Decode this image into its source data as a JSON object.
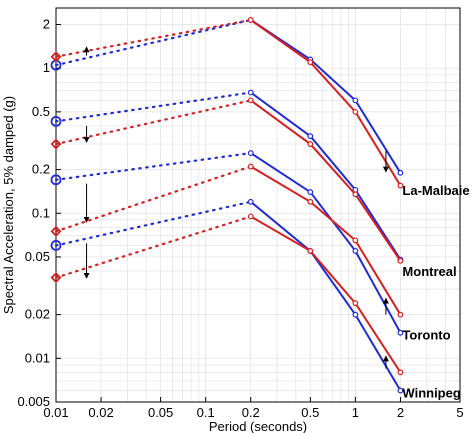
{
  "chart_data": {
    "type": "line",
    "xlabel": "Period (seconds)",
    "ylabel": "Spectral Acceleration, 5% damped (g)",
    "x_scale": "log",
    "y_scale": "log",
    "xlim": [
      0.01,
      5
    ],
    "ylim": [
      0.005,
      2.6
    ],
    "grid": true,
    "x_ticks": [
      0.01,
      0.02,
      0.05,
      0.1,
      0.2,
      0.5,
      1,
      2,
      5
    ],
    "x_tick_labels": [
      "0.01",
      "0.02",
      "0.05",
      "0.1",
      "0.2",
      "0.5",
      "1",
      "2",
      "5"
    ],
    "y_ticks": [
      0.005,
      0.01,
      0.02,
      0.05,
      0.1,
      0.2,
      0.5,
      1,
      2
    ],
    "y_tick_labels": [
      "0.005",
      "0.01",
      "0.02",
      "0.05",
      "0.1",
      "0.2",
      "0.5",
      "1",
      "2"
    ],
    "colors": {
      "blue": "#1f2bd6",
      "red": "#d81e1e"
    },
    "groups": [
      {
        "city": "La-Malbaie",
        "blue": {
          "pga": 1.05,
          "x": [
            0.2,
            0.5,
            1,
            2
          ],
          "y": [
            2.15,
            1.15,
            0.6,
            0.19
          ]
        },
        "red": {
          "pga": 1.2,
          "x": [
            0.2,
            0.5,
            1,
            2
          ],
          "y": [
            2.15,
            1.1,
            0.5,
            0.155
          ]
        },
        "arrow": [
          {
            "x": 0.016,
            "from": 1.22,
            "to": 1.35
          },
          {
            "x": 1.6,
            "from": 0.27,
            "to": 0.2
          }
        ]
      },
      {
        "city": "Montreal",
        "blue": {
          "pga": 0.43,
          "x": [
            0.2,
            0.5,
            1,
            2
          ],
          "y": [
            0.68,
            0.34,
            0.145,
            0.048
          ]
        },
        "red": {
          "pga": 0.3,
          "x": [
            0.2,
            0.5,
            1,
            2
          ],
          "y": [
            0.6,
            0.3,
            0.135,
            0.047
          ]
        },
        "arrow": [
          {
            "x": 0.016,
            "from": 0.4,
            "to": 0.32
          }
        ]
      },
      {
        "city": "Toronto",
        "blue": {
          "pga": 0.17,
          "x": [
            0.2,
            0.5,
            1,
            2
          ],
          "y": [
            0.26,
            0.14,
            0.055,
            0.015
          ]
        },
        "red": {
          "pga": 0.075,
          "x": [
            0.2,
            0.5,
            1,
            2
          ],
          "y": [
            0.21,
            0.12,
            0.065,
            0.02
          ]
        },
        "arrow": [
          {
            "x": 0.016,
            "from": 0.16,
            "to": 0.09
          },
          {
            "x": 1.6,
            "from": 0.02,
            "to": 0.025
          }
        ]
      },
      {
        "city": "Winnipeg",
        "blue": {
          "pga": 0.06,
          "x": [
            0.2,
            0.5,
            1,
            2
          ],
          "y": [
            0.12,
            0.055,
            0.02,
            0.006
          ]
        },
        "red": {
          "pga": 0.036,
          "x": [
            0.2,
            0.5,
            1,
            2
          ],
          "y": [
            0.095,
            0.055,
            0.024,
            0.008
          ]
        },
        "arrow": [
          {
            "x": 0.016,
            "from": 0.062,
            "to": 0.037
          },
          {
            "x": 1.6,
            "from": 0.0085,
            "to": 0.01
          }
        ]
      }
    ]
  }
}
